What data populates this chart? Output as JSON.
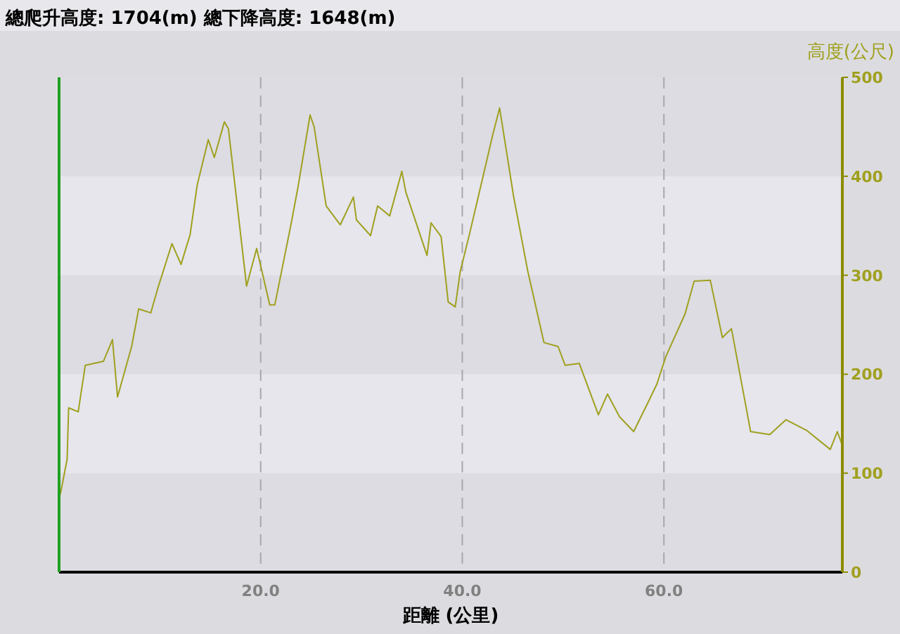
{
  "chart_data": {
    "type": "line",
    "title": "總爬升高度: 1704(m)  總下降高度: 1648(m)",
    "xlabel": "距離 (公里)",
    "ylabel": "高度(公尺)",
    "x": [
      0,
      0.17,
      0.8,
      0.95,
      1.9,
      2.6,
      4.4,
      5.3,
      5.8,
      7.2,
      7.9,
      9.1,
      9.8,
      11.2,
      12.1,
      13.0,
      13.7,
      14.8,
      15.4,
      16.4,
      16.8,
      18.6,
      19.6,
      20.9,
      21.4,
      23.0,
      23.7,
      24.9,
      25.3,
      26.5,
      27.9,
      29.2,
      29.5,
      30.9,
      31.6,
      32.8,
      34.0,
      34.4,
      36.5,
      36.9,
      37.9,
      38.6,
      39.3,
      39.8,
      40.7,
      41.9,
      43.0,
      43.7,
      45.1,
      46.5,
      48.1,
      49.5,
      50.2,
      51.6,
      53.5,
      54.4,
      55.6,
      57.0,
      58.4,
      59.3,
      60.2,
      62.1,
      63.0,
      64.6,
      65.8,
      66.7,
      68.6,
      70.5,
      72.1,
      74.2,
      76.5,
      77.2,
      77.7
    ],
    "series": [
      {
        "color": "#a0a020",
        "values": [
          75,
          81,
          114,
          166,
          162,
          209,
          213,
          235,
          177,
          228,
          266,
          262,
          287,
          332,
          311,
          341,
          391,
          437,
          419,
          455,
          448,
          289,
          327,
          270,
          270,
          351,
          389,
          462,
          450,
          370,
          351,
          379,
          356,
          340,
          370,
          360,
          405,
          384,
          320,
          353,
          339,
          273,
          268,
          304,
          341,
          393,
          441,
          469,
          379,
          304,
          232,
          228,
          209,
          211,
          159,
          180,
          157,
          142,
          171,
          190,
          218,
          261,
          294,
          295,
          237,
          246,
          142,
          139,
          154,
          143,
          124,
          142,
          128
        ]
      }
    ],
    "xlim": [
      0,
      77.7
    ],
    "xticks": [
      {
        "value": 20,
        "label": "20.0"
      },
      {
        "value": 40,
        "label": "40.0"
      },
      {
        "value": 60,
        "label": "60.0"
      }
    ],
    "ylim": [
      0,
      500
    ],
    "yticks": [
      0,
      100,
      200,
      300,
      400,
      500
    ],
    "grid": "x",
    "bands": [
      {
        "axis": "y",
        "from": 100,
        "to": 200,
        "color": "#e6e6ec"
      },
      {
        "axis": "y",
        "from": 300,
        "to": 400,
        "color": "#e6e6ec"
      }
    ]
  }
}
